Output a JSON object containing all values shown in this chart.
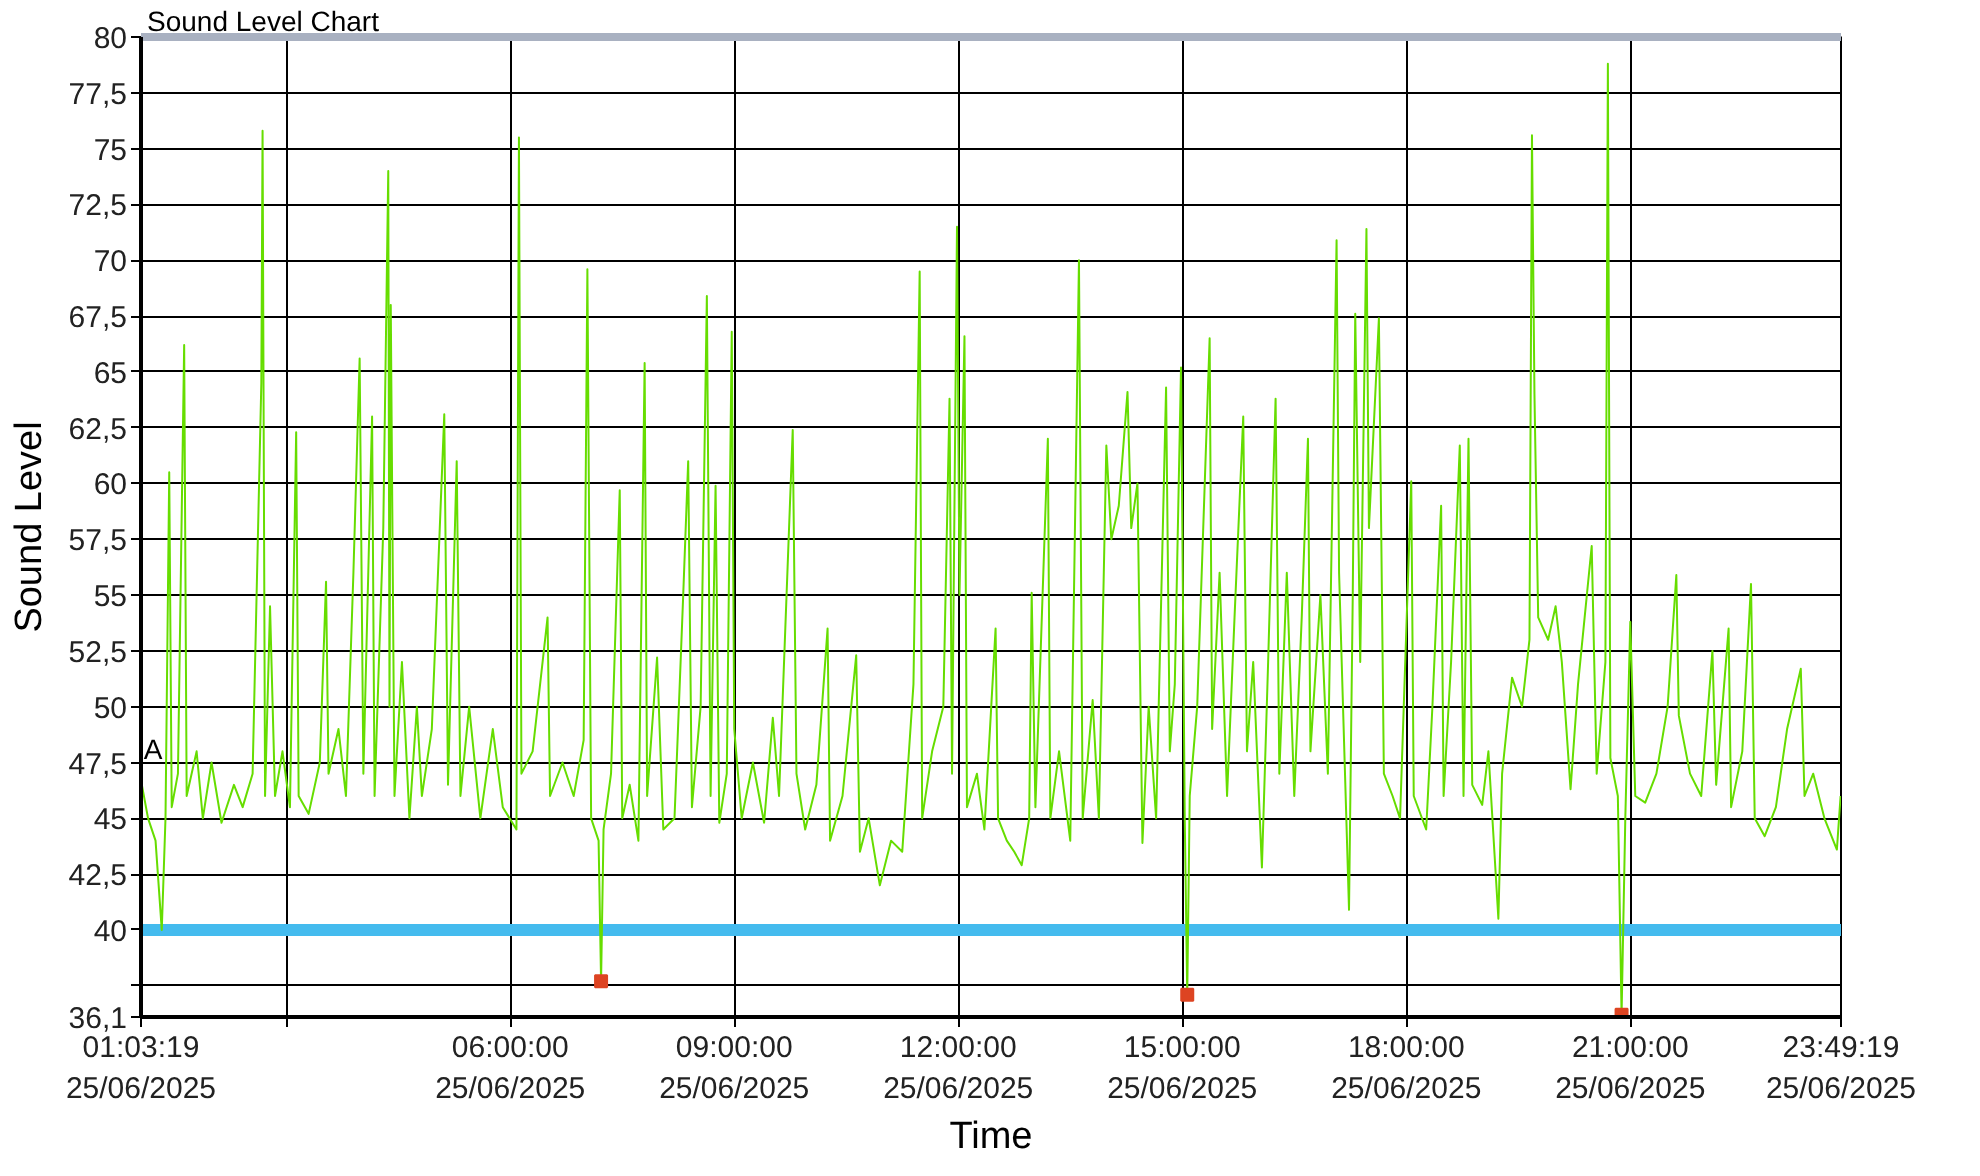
{
  "chart_data": {
    "type": "line",
    "title": "Sound Level Chart",
    "xlabel": "Time",
    "ylabel": "Sound Level",
    "xlim": [
      "2025-06-25T01:03:19",
      "2025-06-25T23:49:19"
    ],
    "ylim": [
      36.1,
      80
    ],
    "xticks": [
      {
        "value": "2025-06-25T01:03:19",
        "label": "01:03:19\n25/06/2025"
      },
      {
        "value": "2025-06-25T03:00",
        "label": null
      },
      {
        "value": "2025-06-25T06:00",
        "label": "06:00:00\n25/06/2025"
      },
      {
        "value": "2025-06-25T09:00",
        "label": "09:00:00\n25/06/2025"
      },
      {
        "value": "2025-06-25T12:00",
        "label": "12:00:00\n25/06/2025"
      },
      {
        "value": "2025-06-25T15:00",
        "label": "15:00:00\n25/06/2025"
      },
      {
        "value": "2025-06-25T18:00",
        "label": "18:00:00\n25/06/2025"
      },
      {
        "value": "2025-06-25T21:00",
        "label": "21:00:00\n25/06/2025"
      },
      {
        "value": "2025-06-25T23:49:19",
        "label": "23:49:19\n25/06/2025"
      }
    ],
    "yticks": [
      {
        "value": 36.1,
        "label": "36,1"
      },
      {
        "value": 37.5,
        "label": null
      },
      40,
      {
        "value": 42.5,
        "label": "42,5"
      },
      45,
      {
        "value": 47.5,
        "label": "47,5"
      },
      50,
      {
        "value": 52.5,
        "label": "52,5"
      },
      55,
      {
        "value": 57.5,
        "label": "57,5"
      },
      60,
      {
        "value": 62.5,
        "label": "62,5"
      },
      65,
      {
        "value": 67.5,
        "label": "67,5"
      },
      70,
      {
        "value": 72.5,
        "label": "72,5"
      },
      75,
      {
        "value": 77.5,
        "label": "77,5"
      },
      80
    ],
    "grid": true,
    "ref_lines": [
      {
        "axis": "y",
        "value": 40,
        "color": "#44bbee"
      }
    ],
    "series": [
      {
        "name": "A",
        "color": "#66dd00",
        "x": [
          "2025-06-25T01:04",
          "2025-06-25T01:09",
          "2025-06-25T01:15",
          "2025-06-25T01:20",
          "2025-06-25T01:23",
          "2025-06-25T01:26",
          "2025-06-25T01:28",
          "2025-06-25T01:33",
          "2025-06-25T01:38",
          "2025-06-25T01:40",
          "2025-06-25T01:48",
          "2025-06-25T01:53",
          "2025-06-25T02:00",
          "2025-06-25T02:08",
          "2025-06-25T02:18",
          "2025-06-25T02:25",
          "2025-06-25T02:33",
          "2025-06-25T02:40",
          "2025-06-25T02:41",
          "2025-06-25T02:43",
          "2025-06-25T02:47",
          "2025-06-25T02:51",
          "2025-06-25T02:57",
          "2025-06-25T03:03",
          "2025-06-25T03:08",
          "2025-06-25T03:10",
          "2025-06-25T03:18",
          "2025-06-25T03:27",
          "2025-06-25T03:32",
          "2025-06-25T03:34",
          "2025-06-25T03:42",
          "2025-06-25T03:48",
          "2025-06-25T03:54",
          "2025-06-25T03:59",
          "2025-06-25T04:02",
          "2025-06-25T04:09",
          "2025-06-25T04:11",
          "2025-06-25T04:18",
          "2025-06-25T04:22",
          "2025-06-25T04:23",
          "2025-06-25T04:24",
          "2025-06-25T04:27",
          "2025-06-25T04:33",
          "2025-06-25T04:39",
          "2025-06-25T04:45",
          "2025-06-25T04:49",
          "2025-06-25T04:57",
          "2025-06-25T05:07",
          "2025-06-25T05:10",
          "2025-06-25T05:17",
          "2025-06-25T05:20",
          "2025-06-25T05:27",
          "2025-06-25T05:36",
          "2025-06-25T05:46",
          "2025-06-25T05:54",
          "2025-06-25T06:05",
          "2025-06-25T06:07",
          "2025-06-25T06:09",
          "2025-06-25T06:18",
          "2025-06-25T06:30",
          "2025-06-25T06:32",
          "2025-06-25T06:42",
          "2025-06-25T06:51",
          "2025-06-25T06:59",
          "2025-06-25T07:02",
          "2025-06-25T07:05",
          "2025-06-25T07:11",
          "2025-06-25T07:13",
          "2025-06-25T07:15",
          "2025-06-25T07:21",
          "2025-06-25T07:28",
          "2025-06-25T07:30",
          "2025-06-25T07:36",
          "2025-06-25T07:43",
          "2025-06-25T07:48",
          "2025-06-25T07:50",
          "2025-06-25T07:58",
          "2025-06-25T08:03",
          "2025-06-25T08:12",
          "2025-06-25T08:19",
          "2025-06-25T08:23",
          "2025-06-25T08:26",
          "2025-06-25T08:33",
          "2025-06-25T08:38",
          "2025-06-25T08:41",
          "2025-06-25T08:45",
          "2025-06-25T08:48",
          "2025-06-25T08:54",
          "2025-06-25T08:58",
          "2025-06-25T09:00",
          "2025-06-25T09:06",
          "2025-06-25T09:15",
          "2025-06-25T09:24",
          "2025-06-25T09:31",
          "2025-06-25T09:36",
          "2025-06-25T09:47",
          "2025-06-25T09:50",
          "2025-06-25T09:57",
          "2025-06-25T10:06",
          "2025-06-25T10:15",
          "2025-06-25T10:17",
          "2025-06-25T10:27",
          "2025-06-25T10:38",
          "2025-06-25T10:41",
          "2025-06-25T10:48",
          "2025-06-25T10:57",
          "2025-06-25T11:06",
          "2025-06-25T11:15",
          "2025-06-25T11:24",
          "2025-06-25T11:29",
          "2025-06-25T11:31",
          "2025-06-25T11:39",
          "2025-06-25T11:48",
          "2025-06-25T11:53",
          "2025-06-25T11:55",
          "2025-06-25T11:59",
          "2025-06-25T12:01",
          "2025-06-25T12:05",
          "2025-06-25T12:07",
          "2025-06-25T12:15",
          "2025-06-25T12:21",
          "2025-06-25T12:30",
          "2025-06-25T12:32",
          "2025-06-25T12:39",
          "2025-06-25T12:45",
          "2025-06-25T12:51",
          "2025-06-25T12:57",
          "2025-06-25T12:59",
          "2025-06-25T13:02",
          "2025-06-25T13:12",
          "2025-06-25T13:14",
          "2025-06-25T13:21",
          "2025-06-25T13:30",
          "2025-06-25T13:37",
          "2025-06-25T13:40",
          "2025-06-25T13:48",
          "2025-06-25T13:53",
          "2025-06-25T13:59",
          "2025-06-25T14:03",
          "2025-06-25T14:09",
          "2025-06-25T14:16",
          "2025-06-25T14:19",
          "2025-06-25T14:24",
          "2025-06-25T14:28",
          "2025-06-25T14:33",
          "2025-06-25T14:39",
          "2025-06-25T14:47",
          "2025-06-25T14:50",
          "2025-06-25T14:54",
          "2025-06-25T14:59",
          "2025-06-25T15:02",
          "2025-06-25T15:04",
          "2025-06-25T15:06",
          "2025-06-25T15:12",
          "2025-06-25T15:22",
          "2025-06-25T15:24",
          "2025-06-25T15:30",
          "2025-06-25T15:36",
          "2025-06-25T15:42",
          "2025-06-25T15:49",
          "2025-06-25T15:52",
          "2025-06-25T15:57",
          "2025-06-25T16:04",
          "2025-06-25T16:09",
          "2025-06-25T16:15",
          "2025-06-25T16:18",
          "2025-06-25T16:24",
          "2025-06-25T16:30",
          "2025-06-25T16:36",
          "2025-06-25T16:41",
          "2025-06-25T16:43",
          "2025-06-25T16:51",
          "2025-06-25T16:57",
          "2025-06-25T17:04",
          "2025-06-25T17:06",
          "2025-06-25T17:14",
          "2025-06-25T17:17",
          "2025-06-25T17:19",
          "2025-06-25T17:23",
          "2025-06-25T17:28",
          "2025-06-25T17:30",
          "2025-06-25T17:38",
          "2025-06-25T17:42",
          "2025-06-25T17:49",
          "2025-06-25T17:55",
          "2025-06-25T18:04",
          "2025-06-25T18:06",
          "2025-06-25T18:16",
          "2025-06-25T18:21",
          "2025-06-25T18:28",
          "2025-06-25T18:30",
          "2025-06-25T18:36",
          "2025-06-25T18:43",
          "2025-06-25T18:46",
          "2025-06-25T18:50",
          "2025-06-25T18:53",
          "2025-06-25T19:01",
          "2025-06-25T19:06",
          "2025-06-25T19:14",
          "2025-06-25T19:17",
          "2025-06-25T19:25",
          "2025-06-25T19:33",
          "2025-06-25T19:39",
          "2025-06-25T19:41",
          "2025-06-25T19:43",
          "2025-06-25T19:46",
          "2025-06-25T19:54",
          "2025-06-25T20:00",
          "2025-06-25T20:05",
          "2025-06-25T20:12",
          "2025-06-25T20:18",
          "2025-06-25T20:29",
          "2025-06-25T20:33",
          "2025-06-25T20:40",
          "2025-06-25T20:42",
          "2025-06-25T20:44",
          "2025-06-25T20:50",
          "2025-06-25T20:53",
          "2025-06-25T20:56",
          "2025-06-25T21:00",
          "2025-06-25T21:04",
          "2025-06-25T21:12",
          "2025-06-25T21:21",
          "2025-06-25T21:30",
          "2025-06-25T21:37",
          "2025-06-25T21:39",
          "2025-06-25T21:48",
          "2025-06-25T21:57",
          "2025-06-25T22:06",
          "2025-06-25T22:09",
          "2025-06-25T22:19",
          "2025-06-25T22:21",
          "2025-06-25T22:30",
          "2025-06-25T22:37",
          "2025-06-25T22:40",
          "2025-06-25T22:48",
          "2025-06-25T22:57",
          "2025-06-25T23:06",
          "2025-06-25T23:17",
          "2025-06-25T23:20",
          "2025-06-25T23:27",
          "2025-06-25T23:36",
          "2025-06-25T23:46",
          "2025-06-25T23:49"
        ],
        "values": [
          46.5,
          45.0,
          44.0,
          40.0,
          45.0,
          60.5,
          45.5,
          47.0,
          66.2,
          46.0,
          48.0,
          45.0,
          47.5,
          44.8,
          46.5,
          45.5,
          47.0,
          64.5,
          75.8,
          46.0,
          54.5,
          46.0,
          48.0,
          45.5,
          62.3,
          46.0,
          45.2,
          47.5,
          55.6,
          47.0,
          49.0,
          46.0,
          56.0,
          65.6,
          47.0,
          63.0,
          46.0,
          58.0,
          74.0,
          50.0,
          68.0,
          46.0,
          52.0,
          45.0,
          50.0,
          46.0,
          49.0,
          63.1,
          46.5,
          61.0,
          46.0,
          50.0,
          45.0,
          49.0,
          45.5,
          44.5,
          75.5,
          47.0,
          48.0,
          54.0,
          46.0,
          47.5,
          46.0,
          48.5,
          69.6,
          45.0,
          44.0,
          37.7,
          44.5,
          47.0,
          59.7,
          45.0,
          46.5,
          44.0,
          65.4,
          46.0,
          52.2,
          44.5,
          45.0,
          55.0,
          61.0,
          45.5,
          50.0,
          68.4,
          46.0,
          59.9,
          44.8,
          47.0,
          66.8,
          49.0,
          45.0,
          47.5,
          44.8,
          49.5,
          46.0,
          62.4,
          47.0,
          44.5,
          46.5,
          53.5,
          44.0,
          46.0,
          52.3,
          43.5,
          45.0,
          42.0,
          44.0,
          43.5,
          51.0,
          69.5,
          45.0,
          48.0,
          50.0,
          63.8,
          47.0,
          71.5,
          55.0,
          66.6,
          45.5,
          47.0,
          44.5,
          53.5,
          45.0,
          44.0,
          43.5,
          42.9,
          45.0,
          55.1,
          45.5,
          62.0,
          45.0,
          48.0,
          44.0,
          70.0,
          45.0,
          50.3,
          45.0,
          61.7,
          57.5,
          59.0,
          64.1,
          58.0,
          60.0,
          43.9,
          50.0,
          45.0,
          64.3,
          48.0,
          51.0,
          65.2,
          45.0,
          37.1,
          46.0,
          50.0,
          66.5,
          49.0,
          56.0,
          46.0,
          54.0,
          63.0,
          48.0,
          52.0,
          42.8,
          52.0,
          63.8,
          47.0,
          56.0,
          46.0,
          54.0,
          62.0,
          48.0,
          55.0,
          47.0,
          70.9,
          56.0,
          40.9,
          55.0,
          67.6,
          52.0,
          71.4,
          58.0,
          67.4,
          47.0,
          46.0,
          45.0,
          60.1,
          46.0,
          44.5,
          50.0,
          59.0,
          46.0,
          52.0,
          61.7,
          46.0,
          62.0,
          46.5,
          45.6,
          48.0,
          40.5,
          47.0,
          51.3,
          50.0,
          53.0,
          75.6,
          64.0,
          54.0,
          53.0,
          54.5,
          52.0,
          46.3,
          51.0,
          57.2,
          47.0,
          52.0,
          78.8,
          47.7,
          46.0,
          36.2,
          45.0,
          53.8,
          46.0,
          45.7,
          47.0,
          50.0,
          55.9,
          49.6,
          47.0,
          46.0,
          52.5,
          46.5,
          53.5,
          45.5,
          48.0,
          55.5,
          45.0,
          44.2,
          45.5,
          49.0,
          51.7,
          46.0,
          47.0,
          45.0,
          43.6,
          46.0
        ]
      },
      {
        "type": "scatter",
        "color": "#dd4422",
        "marker": "square",
        "x": [
          "2025-06-25T07:13",
          "2025-06-25T15:04",
          "2025-06-25T20:53"
        ],
        "values": [
          37.7,
          37.1,
          36.2
        ]
      }
    ]
  }
}
